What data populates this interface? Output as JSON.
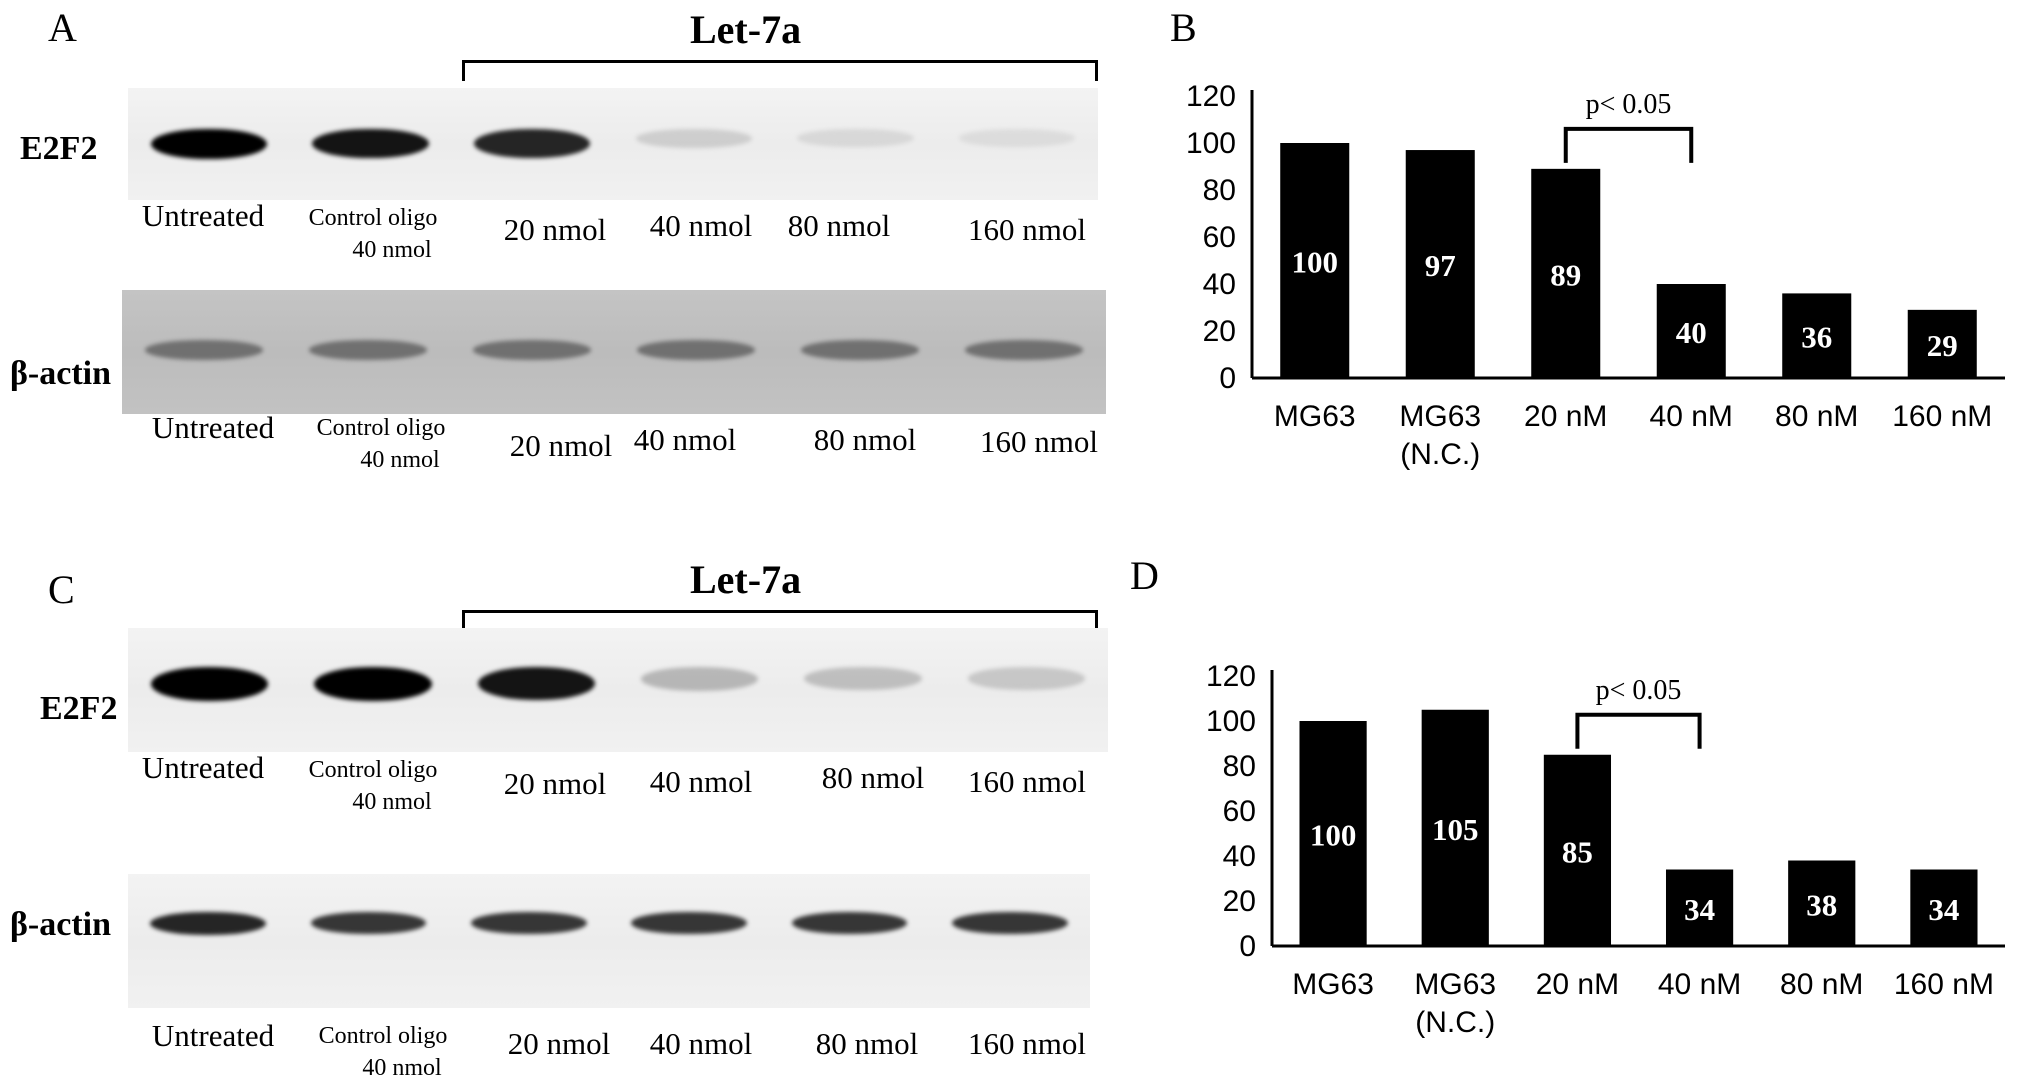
{
  "panels": {
    "A": {
      "letter": "A",
      "group_label": "Let-7a",
      "rows": [
        {
          "label": "E2F2",
          "lanes": [
            "Untreated",
            "Control oligo|40 nmol",
            "20 nmol",
            "40 nmol",
            "80 nmol",
            "160 nmol"
          ],
          "intensities": [
            1.0,
            0.95,
            0.9,
            0.2,
            0.12,
            0.08
          ]
        },
        {
          "label": "β-actin",
          "lanes": [
            "Untreated",
            "Control oligo|40 nmol",
            "20 nmol",
            "40 nmol",
            "80 nmol",
            "160 nmol"
          ],
          "intensities": [
            0.6,
            0.6,
            0.6,
            0.6,
            0.6,
            0.6
          ]
        }
      ]
    },
    "C": {
      "letter": "C",
      "group_label": "Let-7a",
      "rows": [
        {
          "label": "E2F2",
          "lanes": [
            "Untreated",
            "Control oligo|40 nmol",
            "20 nmol",
            "40 nmol",
            "80 nmol",
            "160 nmol"
          ],
          "intensities": [
            1.0,
            1.0,
            0.95,
            0.35,
            0.3,
            0.25
          ]
        },
        {
          "label": "β-actin",
          "lanes": [
            "Untreated",
            "Control oligo|40 nmol",
            "20 nmol",
            "40 nmol",
            "80 nmol",
            "160 nmol"
          ],
          "intensities": [
            0.9,
            0.85,
            0.85,
            0.85,
            0.85,
            0.85
          ]
        }
      ]
    },
    "B": {
      "letter": "B"
    },
    "D": {
      "letter": "D"
    }
  },
  "chart_data": [
    {
      "type": "bar",
      "panel": "B",
      "categories": [
        "MG63",
        "MG63|(N.C.)",
        "20 nM",
        "40 nM",
        "80 nM",
        "160 nM"
      ],
      "values": [
        100,
        97,
        89,
        40,
        36,
        29
      ],
      "data_labels": [
        "100",
        "97",
        "89",
        "40",
        "36",
        "29"
      ],
      "ylim": [
        0,
        120
      ],
      "yticks": [
        0,
        20,
        40,
        60,
        80,
        100,
        120
      ],
      "annotation": {
        "text": "p< 0.05",
        "from": "20 nM",
        "to": "40 nM"
      },
      "bar_color": "#000000"
    },
    {
      "type": "bar",
      "panel": "D",
      "categories": [
        "MG63",
        "MG63|(N.C.)",
        "20 nM",
        "40 nM",
        "80 nM",
        "160 nM"
      ],
      "values": [
        100,
        105,
        85,
        34,
        38,
        34
      ],
      "data_labels": [
        "100",
        "105",
        "85",
        "34",
        "38",
        "34"
      ],
      "ylim": [
        0,
        120
      ],
      "yticks": [
        0,
        20,
        40,
        60,
        80,
        100,
        120
      ],
      "annotation": {
        "text": "p< 0.05",
        "from": "20 nM",
        "to": "40 nM"
      },
      "bar_color": "#000000"
    }
  ]
}
